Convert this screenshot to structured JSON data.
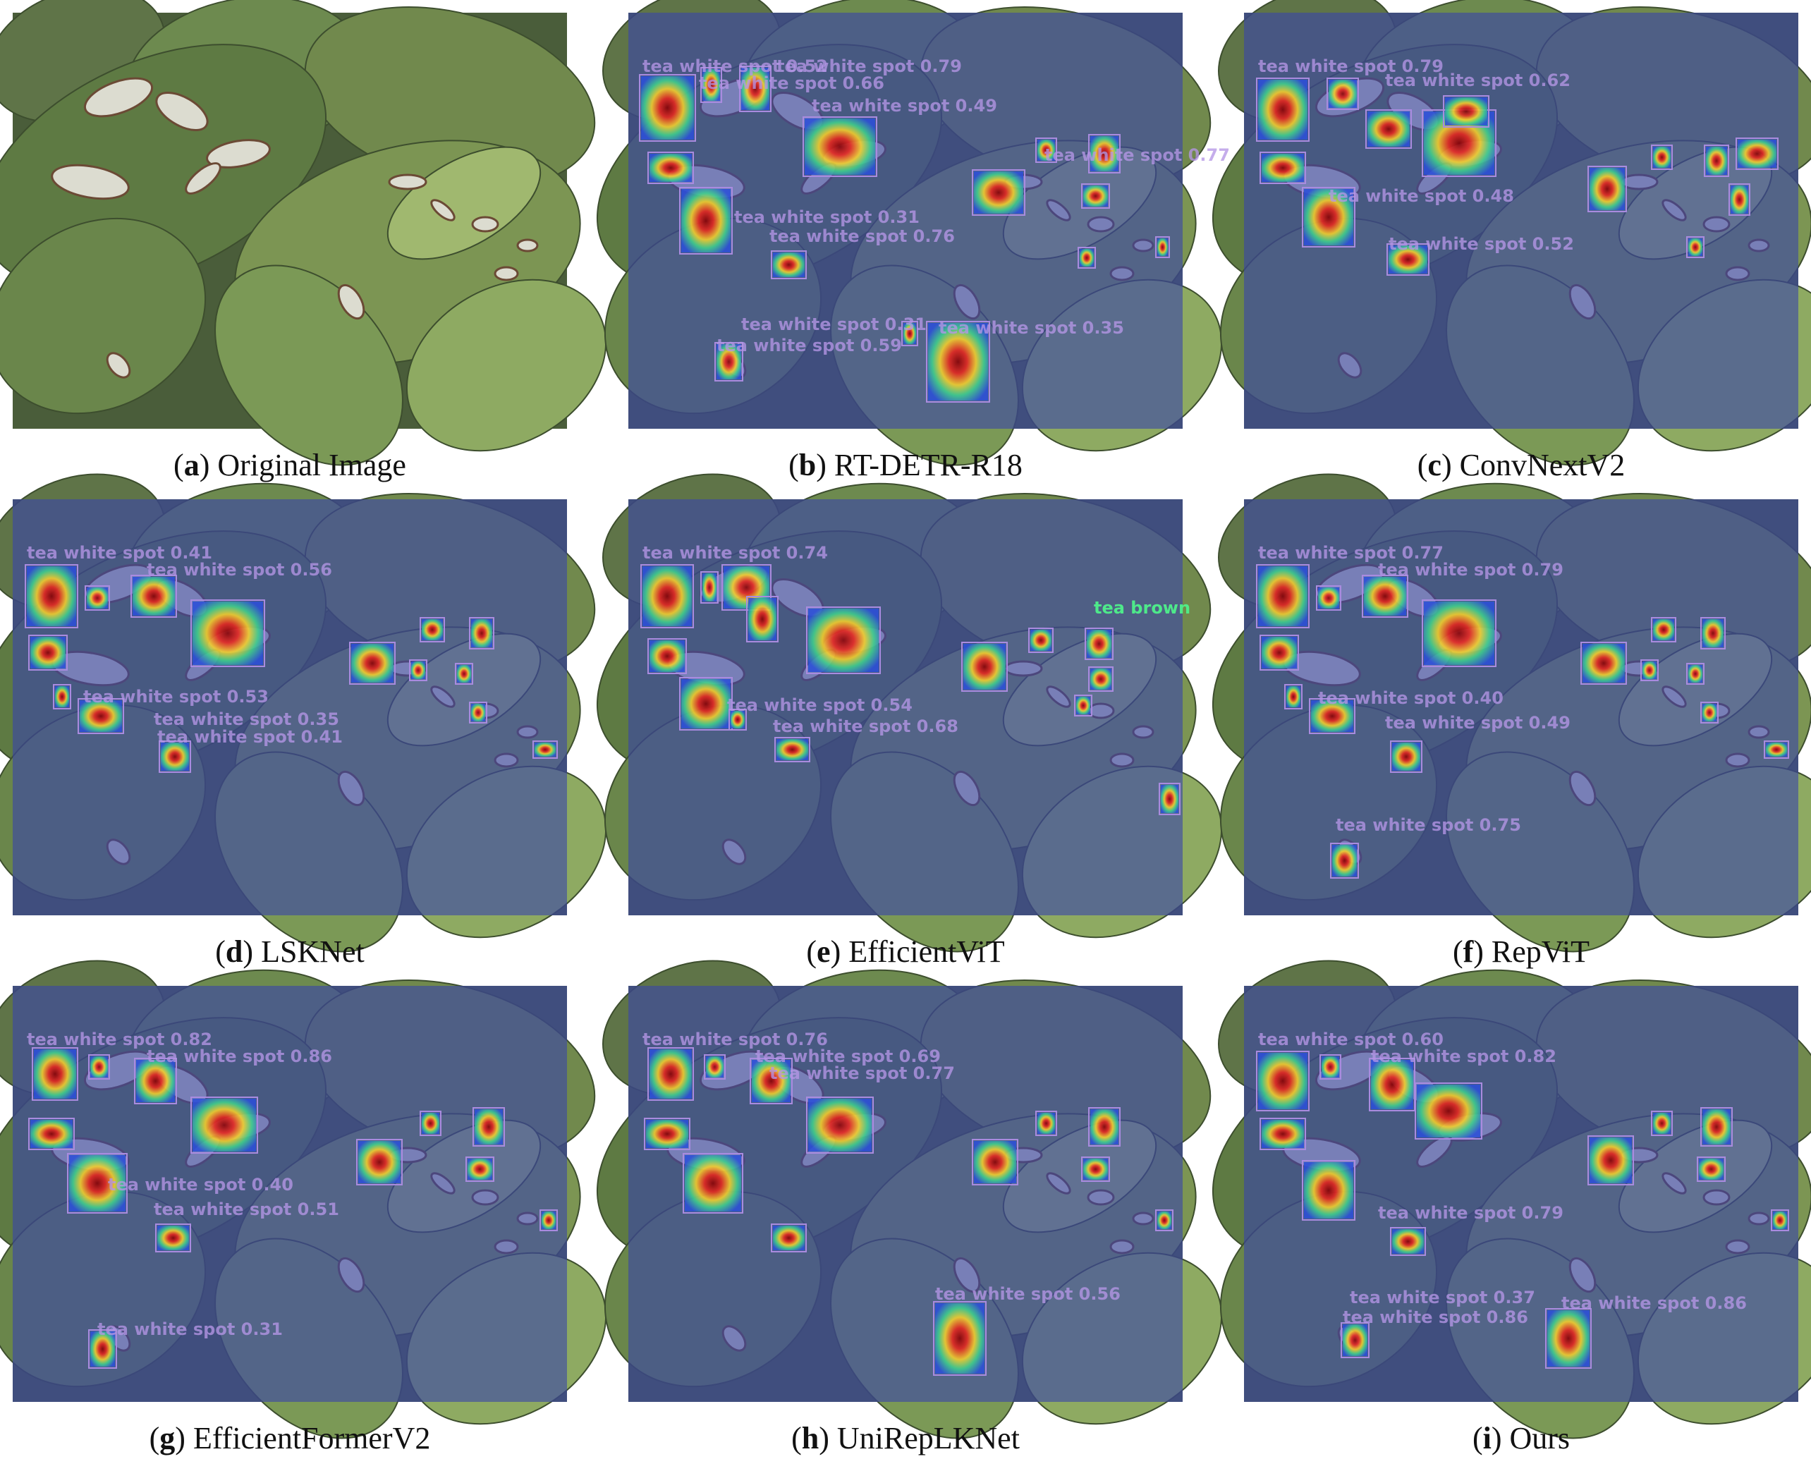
{
  "figure": {
    "panels": [
      {
        "letter": "a",
        "caption": "Original Image",
        "heatmap": false,
        "detections": []
      },
      {
        "letter": "b",
        "caption": "RT-DETR-R18",
        "heatmap": true,
        "detections": [
          {
            "label": "tea white spot 0.52"
          },
          {
            "label": "tea white spot 0.79"
          },
          {
            "label": "tea white spot 0.66"
          },
          {
            "label": "tea white spot 0.49"
          },
          {
            "label": "tea white spot 0.31"
          },
          {
            "label": "tea white spot 0.76"
          },
          {
            "label": "tea white spot 0.31"
          },
          {
            "label": "tea white spot 0.35"
          },
          {
            "label": "tea white spot 0.59"
          },
          {
            "label": "tea white spot 0.77"
          }
        ]
      },
      {
        "letter": "c",
        "caption": "ConvNextV2",
        "heatmap": true,
        "detections": [
          {
            "label": "tea white spot 0.79"
          },
          {
            "label": "tea white spot 0.62"
          },
          {
            "label": "tea white spot 0.48"
          },
          {
            "label": "tea white spot 0.52"
          }
        ]
      },
      {
        "letter": "d",
        "caption": "LSKNet",
        "heatmap": true,
        "detections": [
          {
            "label": "tea white spot 0.41"
          },
          {
            "label": "tea white spot 0.56"
          },
          {
            "label": "tea white spot 0.53"
          },
          {
            "label": "tea white spot 0.35"
          },
          {
            "label": "tea white spot 0.41"
          }
        ]
      },
      {
        "letter": "e",
        "caption": "EfficientViT",
        "heatmap": true,
        "detections": [
          {
            "label": "tea white spot 0.74"
          },
          {
            "label": "tea white spot 0.54"
          },
          {
            "label": "tea white spot 0.68"
          },
          {
            "label": "tea brown"
          }
        ]
      },
      {
        "letter": "f",
        "caption": "RepViT",
        "heatmap": true,
        "detections": [
          {
            "label": "tea white spot 0.77"
          },
          {
            "label": "tea white spot 0.79"
          },
          {
            "label": "tea white spot 0.40"
          },
          {
            "label": "tea white spot 0.49"
          },
          {
            "label": "tea white spot 0.75"
          }
        ]
      },
      {
        "letter": "g",
        "caption": "EfficientFormerV2",
        "heatmap": true,
        "detections": [
          {
            "label": "tea white spot 0.82"
          },
          {
            "label": "tea white spot 0.86"
          },
          {
            "label": "tea white spot 0.40"
          },
          {
            "label": "tea white spot 0.51"
          },
          {
            "label": "tea white spot 0.31"
          }
        ]
      },
      {
        "letter": "h",
        "caption": "UniRepLKNet",
        "heatmap": true,
        "detections": [
          {
            "label": "tea white spot 0.76"
          },
          {
            "label": "tea white spot 0.69"
          },
          {
            "label": "tea white spot 0.77"
          },
          {
            "label": "tea white spot 0.56"
          }
        ]
      },
      {
        "letter": "i",
        "caption": "Ours",
        "heatmap": true,
        "detections": [
          {
            "label": "tea white spot 0.60"
          },
          {
            "label": "tea white spot 0.82"
          },
          {
            "label": "tea white spot 0.79"
          },
          {
            "label": "tea white spot 0.37"
          },
          {
            "label": "tea white spot 0.86"
          },
          {
            "label": "tea white spot 0.86"
          }
        ]
      }
    ]
  }
}
